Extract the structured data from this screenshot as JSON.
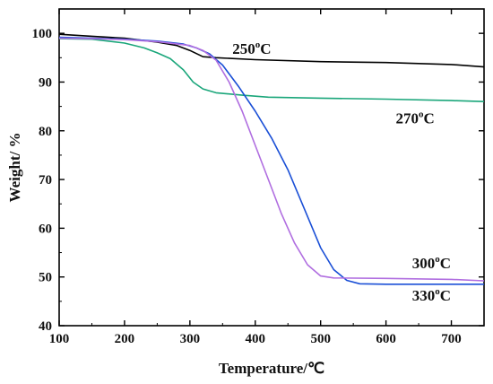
{
  "chart_data": {
    "type": "line",
    "xlabel": "Temperature/",
    "xlabel_unit": "℃",
    "ylabel": "Weight/ %",
    "xlim": [
      100,
      750
    ],
    "ylim": [
      40,
      105
    ],
    "x_ticks": [
      "100",
      "200",
      "300",
      "400",
      "500",
      "600",
      "700"
    ],
    "y_ticks": [
      "40",
      "50",
      "60",
      "70",
      "80",
      "90",
      "100"
    ],
    "grid": false,
    "series": [
      {
        "name": "250°C",
        "label_main": "250",
        "label_sup": "o",
        "label_unit": "C",
        "color": "#000000",
        "label_at": [
          365,
          95.8
        ],
        "points": [
          [
            100,
            99.8
          ],
          [
            150,
            99.4
          ],
          [
            200,
            99.0
          ],
          [
            250,
            98.2
          ],
          [
            280,
            97.5
          ],
          [
            300,
            96.5
          ],
          [
            320,
            95.2
          ],
          [
            340,
            95.0
          ],
          [
            400,
            94.6
          ],
          [
            500,
            94.2
          ],
          [
            600,
            94.0
          ],
          [
            700,
            93.6
          ],
          [
            750,
            93.1
          ]
        ]
      },
      {
        "name": "270°C",
        "label_main": "270",
        "label_sup": "o",
        "label_unit": "C",
        "color": "#1aa67a",
        "label_at": [
          615,
          81.5
        ],
        "points": [
          [
            100,
            98.9
          ],
          [
            150,
            98.8
          ],
          [
            200,
            98.0
          ],
          [
            230,
            97.0
          ],
          [
            250,
            96.0
          ],
          [
            270,
            94.8
          ],
          [
            290,
            92.5
          ],
          [
            305,
            90.0
          ],
          [
            320,
            88.6
          ],
          [
            340,
            87.8
          ],
          [
            380,
            87.3
          ],
          [
            420,
            86.9
          ],
          [
            500,
            86.7
          ],
          [
            600,
            86.5
          ],
          [
            700,
            86.2
          ],
          [
            750,
            86.0
          ]
        ]
      },
      {
        "name": "300°C",
        "label_main": "300",
        "label_sup": "o",
        "label_unit": "C",
        "color": "#1a4fd6",
        "label_at": [
          640,
          51.8
        ],
        "points": [
          [
            100,
            99.2
          ],
          [
            150,
            99.0
          ],
          [
            200,
            98.8
          ],
          [
            250,
            98.4
          ],
          [
            290,
            97.8
          ],
          [
            310,
            97.0
          ],
          [
            330,
            95.8
          ],
          [
            350,
            93.5
          ],
          [
            375,
            89.0
          ],
          [
            400,
            84.0
          ],
          [
            425,
            78.5
          ],
          [
            450,
            72.0
          ],
          [
            475,
            64.0
          ],
          [
            500,
            56.0
          ],
          [
            520,
            51.5
          ],
          [
            540,
            49.3
          ],
          [
            560,
            48.6
          ],
          [
            600,
            48.5
          ],
          [
            700,
            48.5
          ],
          [
            750,
            48.5
          ]
        ]
      },
      {
        "name": "330°C",
        "label_main": "330",
        "label_sup": "o",
        "label_unit": "C",
        "color": "#b06ee0",
        "label_at": [
          640,
          45.2
        ],
        "points": [
          [
            100,
            99.0
          ],
          [
            150,
            98.9
          ],
          [
            200,
            98.7
          ],
          [
            250,
            98.3
          ],
          [
            300,
            97.5
          ],
          [
            320,
            96.5
          ],
          [
            340,
            94.5
          ],
          [
            360,
            90.0
          ],
          [
            380,
            84.0
          ],
          [
            400,
            77.0
          ],
          [
            420,
            70.0
          ],
          [
            440,
            63.0
          ],
          [
            460,
            57.0
          ],
          [
            480,
            52.5
          ],
          [
            500,
            50.2
          ],
          [
            520,
            49.8
          ],
          [
            600,
            49.7
          ],
          [
            700,
            49.5
          ],
          [
            750,
            49.2
          ]
        ]
      }
    ]
  }
}
